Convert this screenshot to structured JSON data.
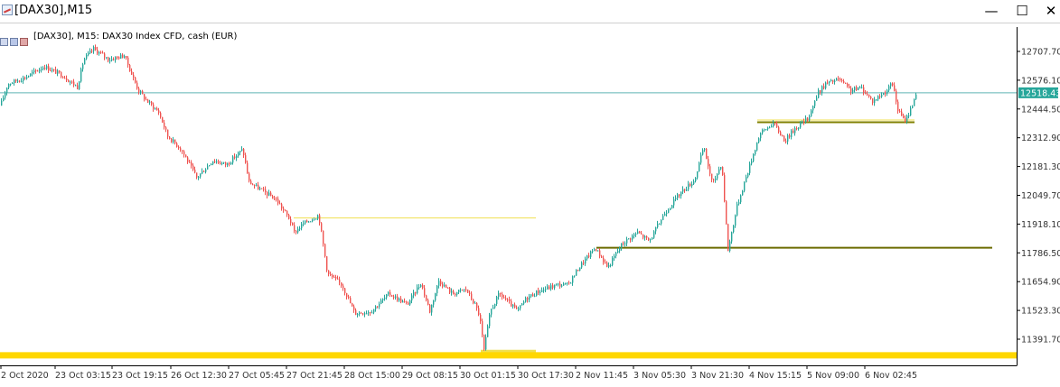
{
  "window": {
    "title": "[DAX30],M15",
    "minimize_icon": "minimize-icon",
    "maximize_icon": "maximize-icon",
    "close_icon": "close-icon",
    "minimize_glyph": "—",
    "maximize_glyph": "☐",
    "close_glyph": "✕"
  },
  "chart_header": {
    "symbol_info": "[DAX30], M15:  DAX30 Index CFD, cash (EUR)"
  },
  "colors": {
    "bull_candle": "#26a69a",
    "bear_candle": "#ef5350",
    "current_price_line": "#5fb3b3",
    "current_price_tag": "#26a69a",
    "support_upper": "#808000",
    "support_lower": "#6b6b00",
    "resistance_mid": "#f0e050",
    "bottom_zone": "#ffd700"
  },
  "chart_data": {
    "type": "candlestick",
    "timeframe": "M15",
    "y_ticks": [
      12707.7,
      12576.1,
      12444.5,
      12312.9,
      12181.3,
      12049.7,
      11918.1,
      11786.5,
      11654.9,
      11523.3,
      11391.7
    ],
    "y_tick_labels": [
      "12707.70",
      "12576.10",
      "12444.50",
      "12312.90",
      "12181.30",
      "12049.70",
      "11918.10",
      "11786.50",
      "11654.90",
      "11523.30",
      "11391.70"
    ],
    "ylim": [
      11320,
      12790
    ],
    "x_labels": [
      "2 Oct 2020",
      "23 Oct 03:15",
      "23 Oct 19:15",
      "26 Oct 12:30",
      "27 Oct 05:45",
      "27 Oct 21:45",
      "28 Oct 15:00",
      "29 Oct 08:15",
      "30 Oct 01:15",
      "30 Oct 17:30",
      "2 Nov 11:45",
      "3 Nov 05:30",
      "3 Nov 21:30",
      "4 Nov 15:15",
      "5 Nov 09:00",
      "6 Nov 02:45"
    ],
    "current_price": 12518.43,
    "current_price_label": "12518.43",
    "key_path": [
      [
        0,
        12460
      ],
      [
        8,
        12560
      ],
      [
        28,
        12590
      ],
      [
        48,
        12640
      ],
      [
        68,
        12600
      ],
      [
        85,
        12545
      ],
      [
        92,
        12670
      ],
      [
        103,
        12720
      ],
      [
        120,
        12670
      ],
      [
        137,
        12690
      ],
      [
        145,
        12605
      ],
      [
        152,
        12535
      ],
      [
        160,
        12490
      ],
      [
        175,
        12430
      ],
      [
        185,
        12320
      ],
      [
        200,
        12260
      ],
      [
        217,
        12130
      ],
      [
        235,
        12210
      ],
      [
        250,
        12190
      ],
      [
        268,
        12260
      ],
      [
        275,
        12110
      ],
      [
        290,
        12070
      ],
      [
        305,
        12030
      ],
      [
        320,
        11940
      ],
      [
        325,
        11880
      ],
      [
        335,
        11920
      ],
      [
        352,
        11960
      ],
      [
        362,
        11690
      ],
      [
        378,
        11640
      ],
      [
        392,
        11510
      ],
      [
        410,
        11520
      ],
      [
        430,
        11600
      ],
      [
        450,
        11550
      ],
      [
        465,
        11650
      ],
      [
        475,
        11520
      ],
      [
        485,
        11660
      ],
      [
        500,
        11600
      ],
      [
        515,
        11620
      ],
      [
        525,
        11550
      ],
      [
        530,
        11500
      ],
      [
        535,
        11340
      ],
      [
        542,
        11520
      ],
      [
        552,
        11600
      ],
      [
        562,
        11560
      ],
      [
        572,
        11520
      ],
      [
        582,
        11580
      ],
      [
        595,
        11610
      ],
      [
        615,
        11640
      ],
      [
        628,
        11640
      ],
      [
        640,
        11720
      ],
      [
        658,
        11810
      ],
      [
        672,
        11720
      ],
      [
        688,
        11830
      ],
      [
        705,
        11880
      ],
      [
        718,
        11840
      ],
      [
        735,
        11970
      ],
      [
        752,
        12060
      ],
      [
        768,
        12120
      ],
      [
        778,
        12270
      ],
      [
        788,
        12100
      ],
      [
        798,
        12200
      ],
      [
        805,
        11800
      ],
      [
        815,
        12000
      ],
      [
        830,
        12200
      ],
      [
        840,
        12330
      ],
      [
        855,
        12380
      ],
      [
        868,
        12300
      ],
      [
        880,
        12360
      ],
      [
        893,
        12400
      ],
      [
        905,
        12520
      ],
      [
        913,
        12560
      ],
      [
        928,
        12580
      ],
      [
        940,
        12530
      ],
      [
        953,
        12540
      ],
      [
        965,
        12480
      ],
      [
        978,
        12520
      ],
      [
        987,
        12560
      ],
      [
        993,
        12440
      ],
      [
        1000,
        12390
      ],
      [
        1006,
        12430
      ],
      [
        1014,
        12530
      ]
    ],
    "horizontal_lines": [
      {
        "price": 12518.43,
        "x_from": 0,
        "x_to": 1125,
        "color": "#5fb3b3",
        "width": 1
      },
      {
        "price": 12384,
        "x_from": 838,
        "x_to": 1012,
        "color": "#808000",
        "width": 2
      },
      {
        "price": 12394,
        "x_from": 838,
        "x_to": 1012,
        "color": "#f0e050",
        "width": 1
      },
      {
        "price": 11810,
        "x_from": 660,
        "x_to": 1098,
        "color": "#6b6b00",
        "width": 2
      },
      {
        "price": 11946,
        "x_from": 325,
        "x_to": 593,
        "color": "#f0e050",
        "width": 1
      },
      {
        "price": 11335,
        "x_from": 532,
        "x_to": 593,
        "color": "#f0e050",
        "width": 4
      },
      {
        "price": 11318,
        "x_from": 0,
        "x_to": 1125,
        "color": "#ffd700",
        "width": 7
      }
    ],
    "grid": false,
    "legend": "none"
  }
}
